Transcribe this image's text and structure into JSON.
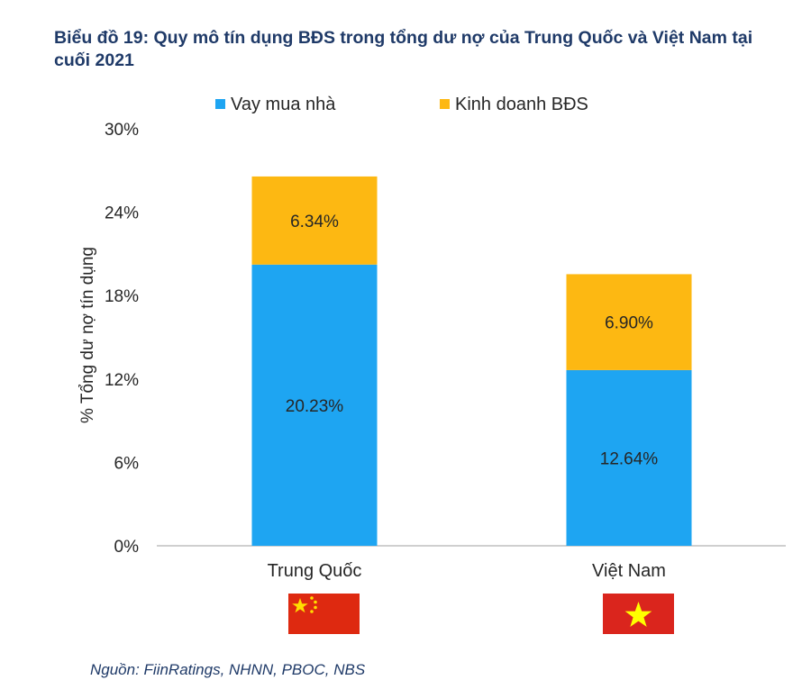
{
  "title": "Biểu đồ 19: Quy mô tín dụng BĐS trong tổng dư nợ của Trung Quốc và Việt Nam tại cuối 2021",
  "source": "Nguồn: FiinRatings, NHNN, PBOC, NBS",
  "colors": {
    "series_0": "#1ea5f2",
    "series_1": "#fdb812",
    "axis": "#bfbfbf",
    "text": "#262626",
    "title": "#1f3a68"
  },
  "chart_data": {
    "type": "bar",
    "stacked": true,
    "categories": [
      "Trung Quốc",
      "Việt Nam"
    ],
    "category_icons": [
      "china-flag-icon",
      "vietnam-flag-icon"
    ],
    "series": [
      {
        "name": "Vay mua nhà",
        "values": [
          20.23,
          12.64
        ],
        "labels": [
          "20.23%",
          "12.64%"
        ]
      },
      {
        "name": "Kinh doanh BĐS",
        "values": [
          6.34,
          6.9
        ],
        "labels": [
          "6.34%",
          "6.90%"
        ]
      }
    ],
    "ylabel": "% Tổng dư nợ tín dụng",
    "xlabel": "",
    "ylim": [
      0,
      30
    ],
    "yticks": [
      0,
      6,
      12,
      18,
      24,
      30
    ],
    "ytick_labels": [
      "0%",
      "6%",
      "12%",
      "18%",
      "24%",
      "30%"
    ],
    "grid": false,
    "legend": "top"
  }
}
